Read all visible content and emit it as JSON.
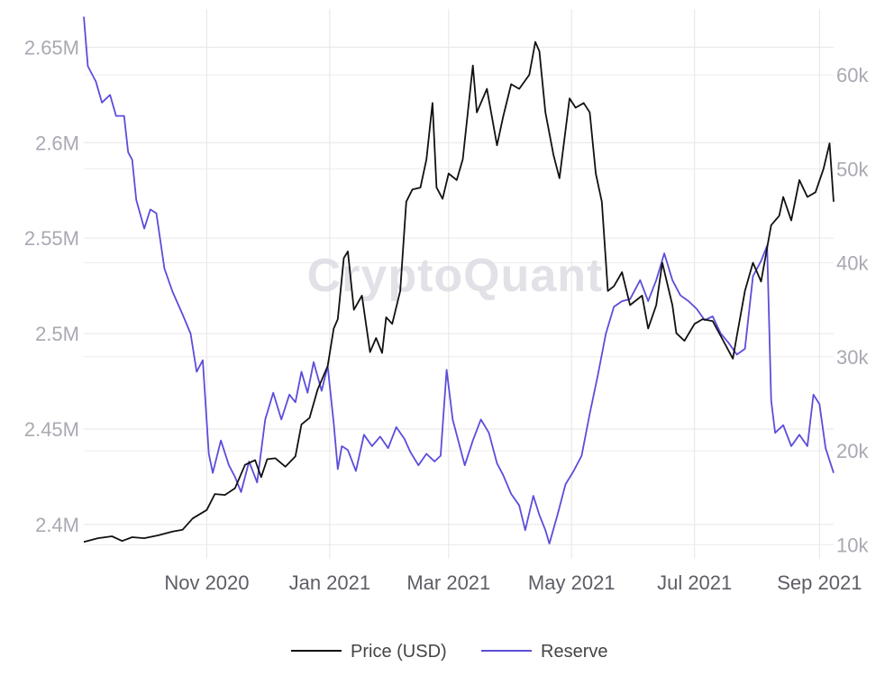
{
  "watermark": "CryptoQuant",
  "chart_data": {
    "type": "line",
    "x_start": "2020-09-01",
    "x_end": "2021-09-08",
    "x_ticks": [
      {
        "date": "2020-11-01",
        "label": "Nov 2020"
      },
      {
        "date": "2021-01-01",
        "label": "Jan 2021"
      },
      {
        "date": "2021-03-01",
        "label": "Mar 2021"
      },
      {
        "date": "2021-05-01",
        "label": "May 2021"
      },
      {
        "date": "2021-07-01",
        "label": "Jul 2021"
      },
      {
        "date": "2021-09-01",
        "label": "Sep 2021"
      }
    ],
    "y_left": {
      "range": [
        2382000,
        2670000
      ],
      "ticks": [
        {
          "value": 2400000,
          "label": "2.4M"
        },
        {
          "value": 2450000,
          "label": "2.45M"
        },
        {
          "value": 2500000,
          "label": "2.5M"
        },
        {
          "value": 2550000,
          "label": "2.55M"
        },
        {
          "value": 2600000,
          "label": "2.6M"
        },
        {
          "value": 2650000,
          "label": "2.65M"
        }
      ]
    },
    "y_right": {
      "range": [
        8500,
        67000
      ],
      "ticks": [
        {
          "value": 10000,
          "label": "10k"
        },
        {
          "value": 20000,
          "label": "20k"
        },
        {
          "value": 30000,
          "label": "30k"
        },
        {
          "value": 40000,
          "label": "40k"
        },
        {
          "value": 50000,
          "label": "50k"
        },
        {
          "value": 60000,
          "label": "60k"
        }
      ]
    },
    "grid": true,
    "legend_position": "bottom",
    "series": [
      {
        "name": "Price (USD)",
        "axis": "right",
        "color": "#111111",
        "points": [
          [
            "2020-09-01",
            10300
          ],
          [
            "2020-09-08",
            10700
          ],
          [
            "2020-09-15",
            10900
          ],
          [
            "2020-09-20",
            10400
          ],
          [
            "2020-09-25",
            10800
          ],
          [
            "2020-10-01",
            10700
          ],
          [
            "2020-10-08",
            11000
          ],
          [
            "2020-10-15",
            11400
          ],
          [
            "2020-10-20",
            11600
          ],
          [
            "2020-10-25",
            12800
          ],
          [
            "2020-11-01",
            13700
          ],
          [
            "2020-11-05",
            15400
          ],
          [
            "2020-11-10",
            15300
          ],
          [
            "2020-11-15",
            16000
          ],
          [
            "2020-11-20",
            18500
          ],
          [
            "2020-11-25",
            19000
          ],
          [
            "2020-11-28",
            17200
          ],
          [
            "2020-12-01",
            19100
          ],
          [
            "2020-12-05",
            19200
          ],
          [
            "2020-12-10",
            18300
          ],
          [
            "2020-12-15",
            19400
          ],
          [
            "2020-12-18",
            22800
          ],
          [
            "2020-12-22",
            23500
          ],
          [
            "2020-12-26",
            26500
          ],
          [
            "2020-12-31",
            29000
          ],
          [
            "2021-01-03",
            33000
          ],
          [
            "2021-01-05",
            34000
          ],
          [
            "2021-01-08",
            40500
          ],
          [
            "2021-01-10",
            41200
          ],
          [
            "2021-01-13",
            35000
          ],
          [
            "2021-01-17",
            36500
          ],
          [
            "2021-01-21",
            30500
          ],
          [
            "2021-01-24",
            32000
          ],
          [
            "2021-01-27",
            30400
          ],
          [
            "2021-01-29",
            34200
          ],
          [
            "2021-02-01",
            33500
          ],
          [
            "2021-02-05",
            37000
          ],
          [
            "2021-02-08",
            46500
          ],
          [
            "2021-02-11",
            47800
          ],
          [
            "2021-02-15",
            48000
          ],
          [
            "2021-02-18",
            51000
          ],
          [
            "2021-02-21",
            57000
          ],
          [
            "2021-02-23",
            48000
          ],
          [
            "2021-02-26",
            46800
          ],
          [
            "2021-03-01",
            49500
          ],
          [
            "2021-03-05",
            48800
          ],
          [
            "2021-03-08",
            51000
          ],
          [
            "2021-03-13",
            61000
          ],
          [
            "2021-03-15",
            56000
          ],
          [
            "2021-03-20",
            58500
          ],
          [
            "2021-03-25",
            52500
          ],
          [
            "2021-03-28",
            55500
          ],
          [
            "2021-04-01",
            59000
          ],
          [
            "2021-04-05",
            58500
          ],
          [
            "2021-04-10",
            60000
          ],
          [
            "2021-04-13",
            63500
          ],
          [
            "2021-04-15",
            62500
          ],
          [
            "2021-04-18",
            56000
          ],
          [
            "2021-04-22",
            51500
          ],
          [
            "2021-04-25",
            49000
          ],
          [
            "2021-04-30",
            57500
          ],
          [
            "2021-05-03",
            56500
          ],
          [
            "2021-05-07",
            57000
          ],
          [
            "2021-05-10",
            56000
          ],
          [
            "2021-05-13",
            49500
          ],
          [
            "2021-05-16",
            46500
          ],
          [
            "2021-05-19",
            37000
          ],
          [
            "2021-05-22",
            37500
          ],
          [
            "2021-05-26",
            39000
          ],
          [
            "2021-05-30",
            35500
          ],
          [
            "2021-06-05",
            36500
          ],
          [
            "2021-06-08",
            33000
          ],
          [
            "2021-06-12",
            35500
          ],
          [
            "2021-06-15",
            40000
          ],
          [
            "2021-06-20",
            35500
          ],
          [
            "2021-06-22",
            32500
          ],
          [
            "2021-06-26",
            31700
          ],
          [
            "2021-07-01",
            33500
          ],
          [
            "2021-07-05",
            34000
          ],
          [
            "2021-07-10",
            33800
          ],
          [
            "2021-07-15",
            31800
          ],
          [
            "2021-07-20",
            29800
          ],
          [
            "2021-07-22",
            32200
          ],
          [
            "2021-07-26",
            37000
          ],
          [
            "2021-07-30",
            40000
          ],
          [
            "2021-08-03",
            38000
          ],
          [
            "2021-08-08",
            44000
          ],
          [
            "2021-08-12",
            45000
          ],
          [
            "2021-08-14",
            47000
          ],
          [
            "2021-08-18",
            44500
          ],
          [
            "2021-08-22",
            48800
          ],
          [
            "2021-08-26",
            47000
          ],
          [
            "2021-08-30",
            47500
          ],
          [
            "2021-09-03",
            50000
          ],
          [
            "2021-09-06",
            52700
          ],
          [
            "2021-09-08",
            46500
          ]
        ]
      },
      {
        "name": "Reserve",
        "axis": "left",
        "color": "#5b4ddb",
        "points": [
          [
            "2020-09-01",
            2666000
          ],
          [
            "2020-09-03",
            2640000
          ],
          [
            "2020-09-07",
            2632000
          ],
          [
            "2020-09-10",
            2621000
          ],
          [
            "2020-09-14",
            2625000
          ],
          [
            "2020-09-17",
            2614000
          ],
          [
            "2020-09-21",
            2614000
          ],
          [
            "2020-09-23",
            2595000
          ],
          [
            "2020-09-25",
            2591000
          ],
          [
            "2020-09-27",
            2570000
          ],
          [
            "2020-10-01",
            2555000
          ],
          [
            "2020-10-04",
            2565000
          ],
          [
            "2020-10-07",
            2563000
          ],
          [
            "2020-10-11",
            2534000
          ],
          [
            "2020-10-15",
            2522000
          ],
          [
            "2020-10-20",
            2510000
          ],
          [
            "2020-10-24",
            2500000
          ],
          [
            "2020-10-27",
            2480000
          ],
          [
            "2020-10-30",
            2486000
          ],
          [
            "2020-11-02",
            2437000
          ],
          [
            "2020-11-04",
            2427000
          ],
          [
            "2020-11-08",
            2444000
          ],
          [
            "2020-11-12",
            2431000
          ],
          [
            "2020-11-15",
            2425000
          ],
          [
            "2020-11-18",
            2417000
          ],
          [
            "2020-11-22",
            2433000
          ],
          [
            "2020-11-26",
            2422000
          ],
          [
            "2020-11-30",
            2455000
          ],
          [
            "2020-12-04",
            2469000
          ],
          [
            "2020-12-08",
            2455000
          ],
          [
            "2020-12-12",
            2468000
          ],
          [
            "2020-12-15",
            2464000
          ],
          [
            "2020-12-18",
            2480000
          ],
          [
            "2020-12-21",
            2469000
          ],
          [
            "2020-12-24",
            2485000
          ],
          [
            "2020-12-28",
            2470000
          ],
          [
            "2020-12-31",
            2483000
          ],
          [
            "2021-01-03",
            2453000
          ],
          [
            "2021-01-05",
            2429000
          ],
          [
            "2021-01-07",
            2441000
          ],
          [
            "2021-01-10",
            2439000
          ],
          [
            "2021-01-14",
            2428000
          ],
          [
            "2021-01-18",
            2447000
          ],
          [
            "2021-01-22",
            2441000
          ],
          [
            "2021-01-26",
            2446000
          ],
          [
            "2021-01-30",
            2440000
          ],
          [
            "2021-02-03",
            2451000
          ],
          [
            "2021-02-07",
            2445000
          ],
          [
            "2021-02-10",
            2438000
          ],
          [
            "2021-02-14",
            2431000
          ],
          [
            "2021-02-18",
            2437000
          ],
          [
            "2021-02-22",
            2433000
          ],
          [
            "2021-02-25",
            2436000
          ],
          [
            "2021-02-28",
            2481000
          ],
          [
            "2021-03-03",
            2455000
          ],
          [
            "2021-03-06",
            2443000
          ],
          [
            "2021-03-09",
            2431000
          ],
          [
            "2021-03-13",
            2444000
          ],
          [
            "2021-03-17",
            2455000
          ],
          [
            "2021-03-21",
            2448000
          ],
          [
            "2021-03-25",
            2432000
          ],
          [
            "2021-03-28",
            2426000
          ],
          [
            "2021-04-01",
            2416000
          ],
          [
            "2021-04-05",
            2410000
          ],
          [
            "2021-04-08",
            2397000
          ],
          [
            "2021-04-12",
            2415000
          ],
          [
            "2021-04-15",
            2405000
          ],
          [
            "2021-04-18",
            2397000
          ],
          [
            "2021-04-20",
            2390000
          ],
          [
            "2021-04-24",
            2405000
          ],
          [
            "2021-04-28",
            2421000
          ],
          [
            "2021-05-02",
            2428000
          ],
          [
            "2021-05-06",
            2436000
          ],
          [
            "2021-05-10",
            2458000
          ],
          [
            "2021-05-14",
            2478000
          ],
          [
            "2021-05-18",
            2500000
          ],
          [
            "2021-05-22",
            2514000
          ],
          [
            "2021-05-26",
            2517000
          ],
          [
            "2021-05-30",
            2518000
          ],
          [
            "2021-06-04",
            2528000
          ],
          [
            "2021-06-08",
            2517000
          ],
          [
            "2021-06-12",
            2528000
          ],
          [
            "2021-06-16",
            2542000
          ],
          [
            "2021-06-20",
            2528000
          ],
          [
            "2021-06-24",
            2520000
          ],
          [
            "2021-06-28",
            2517000
          ],
          [
            "2021-07-02",
            2513000
          ],
          [
            "2021-07-06",
            2507000
          ],
          [
            "2021-07-10",
            2509000
          ],
          [
            "2021-07-14",
            2500000
          ],
          [
            "2021-07-18",
            2495000
          ],
          [
            "2021-07-22",
            2489000
          ],
          [
            "2021-07-26",
            2492000
          ],
          [
            "2021-07-30",
            2530000
          ],
          [
            "2021-08-03",
            2538000
          ],
          [
            "2021-08-06",
            2546000
          ],
          [
            "2021-08-08",
            2465000
          ],
          [
            "2021-08-10",
            2448000
          ],
          [
            "2021-08-14",
            2452000
          ],
          [
            "2021-08-18",
            2441000
          ],
          [
            "2021-08-22",
            2447000
          ],
          [
            "2021-08-26",
            2441000
          ],
          [
            "2021-08-29",
            2468000
          ],
          [
            "2021-09-01",
            2463000
          ],
          [
            "2021-09-04",
            2440000
          ],
          [
            "2021-09-08",
            2427000
          ]
        ]
      }
    ]
  }
}
